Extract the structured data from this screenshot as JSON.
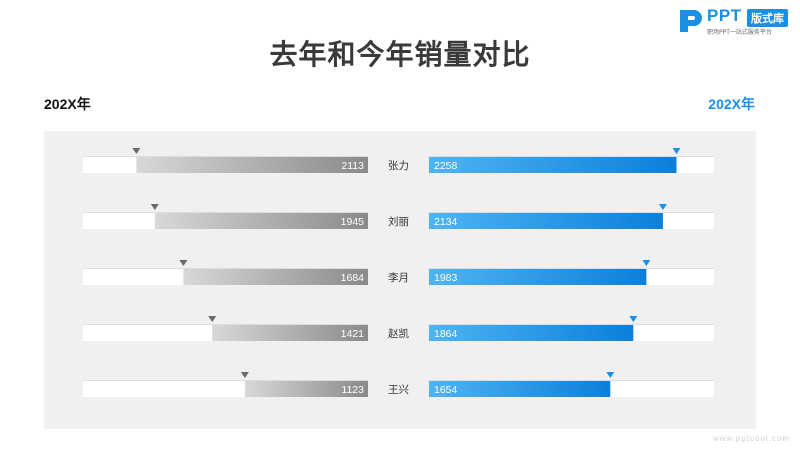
{
  "title": "去年和今年销量对比",
  "legend_left": "202X年",
  "legend_right": "202X年",
  "logo": {
    "brand": "PPT",
    "badge": "版式库",
    "tagline": "职场PPT一站式服务平台"
  },
  "watermark": "www.pptcool.com",
  "colors": {
    "accent": "#1a8fe3",
    "gray": "#8f8f8f",
    "panel": "#f0f0f0"
  },
  "chart_data": {
    "type": "bar",
    "orientation": "horizontal-butterfly",
    "categories": [
      "张力",
      "刘丽",
      "李月",
      "赵凯",
      "王兴"
    ],
    "series": [
      {
        "name": "202X年",
        "values": [
          2113,
          1945,
          1684,
          1421,
          1123
        ]
      },
      {
        "name": "202X年",
        "values": [
          2258,
          2134,
          1983,
          1864,
          1654
        ]
      }
    ],
    "xlim": [
      0,
      2600
    ]
  }
}
